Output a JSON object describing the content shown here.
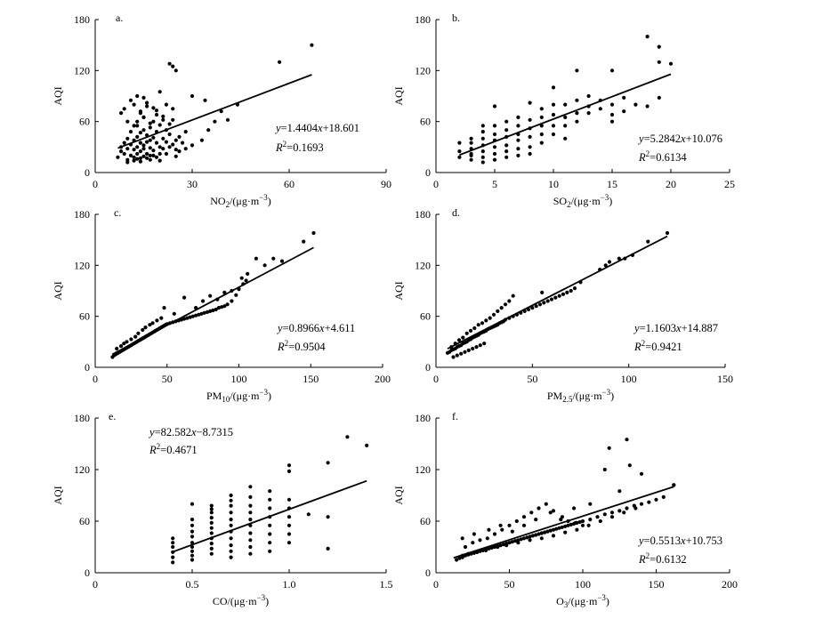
{
  "chart_data": [
    {
      "type": "scatter",
      "panel_label": "a.",
      "xlabel": "NO2/(μg·m−3)",
      "xlabel_parts": {
        "base": "NO",
        "sub": "2",
        "unit": "/(μg·m",
        "sup": "−3",
        "close": ")"
      },
      "ylabel": "AQI",
      "xlim": [
        0,
        90
      ],
      "ylim": [
        0,
        180
      ],
      "xticks": [
        0,
        30,
        60,
        90
      ],
      "yticks": [
        0,
        60,
        120,
        180
      ],
      "equation": "y=1.4404x+18.601",
      "eq_parts": {
        "slope": "=1.4404",
        "intercept": "+18.601"
      },
      "r2": "=0.1693",
      "fit": {
        "slope": 1.4404,
        "intercept": 18.601,
        "x_range": [
          7,
          67
        ]
      },
      "x": [
        7,
        8,
        8,
        9,
        9,
        10,
        10,
        10,
        11,
        11,
        11,
        12,
        12,
        12,
        12,
        13,
        13,
        13,
        13,
        14,
        14,
        14,
        14,
        14,
        15,
        15,
        15,
        15,
        16,
        16,
        16,
        16,
        17,
        17,
        17,
        17,
        18,
        18,
        18,
        19,
        19,
        19,
        20,
        20,
        20,
        21,
        21,
        21,
        22,
        22,
        23,
        23,
        24,
        24,
        25,
        25,
        26,
        27,
        28,
        8,
        9,
        10,
        11,
        12,
        13,
        13,
        14,
        15,
        15,
        16,
        17,
        18,
        19,
        20,
        21,
        22,
        23,
        24,
        10,
        12,
        13,
        14,
        15,
        16,
        17,
        18,
        19,
        20,
        22,
        25,
        26,
        28,
        30,
        33,
        35,
        37,
        41,
        23,
        24,
        25,
        30,
        34,
        39,
        44,
        57,
        67
      ],
      "y": [
        18,
        25,
        30,
        22,
        35,
        28,
        40,
        15,
        33,
        48,
        20,
        27,
        38,
        55,
        18,
        30,
        42,
        60,
        22,
        35,
        47,
        25,
        70,
        17,
        32,
        50,
        28,
        65,
        36,
        22,
        44,
        78,
        29,
        53,
        38,
        20,
        41,
        60,
        26,
        35,
        48,
        73,
        30,
        56,
        22,
        40,
        66,
        28,
        36,
        50,
        30,
        45,
        33,
        62,
        38,
        27,
        42,
        35,
        48,
        70,
        75,
        60,
        85,
        80,
        90,
        55,
        72,
        88,
        65,
        82,
        58,
        76,
        68,
        95,
        62,
        80,
        57,
        75,
        12,
        14,
        16,
        13,
        19,
        17,
        15,
        20,
        18,
        14,
        22,
        19,
        25,
        28,
        32,
        38,
        50,
        60,
        62,
        128,
        125,
        120,
        90,
        85,
        72,
        80,
        130,
        150
      ]
    },
    {
      "type": "scatter",
      "panel_label": "b.",
      "xlabel": "SO2/(μg·m−3)",
      "xlabel_parts": {
        "base": "SO",
        "sub": "2",
        "unit": "/(μg·m",
        "sup": "−3",
        "close": ")"
      },
      "ylabel": "AQI",
      "xlim": [
        0,
        25
      ],
      "ylim": [
        0,
        180
      ],
      "xticks": [
        0,
        5,
        10,
        15,
        20,
        25
      ],
      "yticks": [
        0,
        60,
        120,
        180
      ],
      "equation": "y=5.2842x+10.076",
      "eq_parts": {
        "slope": "=5.2842",
        "intercept": "+10.076"
      },
      "r2": "=0.6134",
      "fit": {
        "slope": 5.2842,
        "intercept": 10.076,
        "x_range": [
          2,
          20
        ]
      },
      "x": [
        2,
        2,
        2,
        3,
        3,
        3,
        3,
        3,
        3,
        4,
        4,
        4,
        4,
        4,
        4,
        4,
        5,
        5,
        5,
        5,
        5,
        5,
        5,
        6,
        6,
        6,
        6,
        6,
        6,
        7,
        7,
        7,
        7,
        7,
        7,
        8,
        8,
        8,
        8,
        8,
        8,
        9,
        9,
        9,
        9,
        9,
        10,
        10,
        10,
        10,
        10,
        11,
        11,
        11,
        11,
        12,
        12,
        12,
        12,
        13,
        13,
        13,
        14,
        14,
        15,
        15,
        15,
        15,
        16,
        16,
        17,
        18,
        18,
        19,
        19,
        19,
        20
      ],
      "y": [
        18,
        25,
        35,
        15,
        22,
        28,
        35,
        40,
        20,
        12,
        18,
        25,
        32,
        40,
        48,
        55,
        15,
        22,
        30,
        38,
        45,
        55,
        78,
        18,
        25,
        32,
        42,
        50,
        60,
        20,
        28,
        38,
        45,
        55,
        65,
        22,
        30,
        42,
        52,
        62,
        82,
        35,
        45,
        55,
        65,
        75,
        45,
        55,
        68,
        80,
        100,
        40,
        55,
        65,
        80,
        60,
        70,
        85,
        120,
        70,
        78,
        90,
        75,
        85,
        60,
        68,
        80,
        120,
        88,
        72,
        80,
        78,
        160,
        88,
        130,
        148,
        128
      ]
    },
    {
      "type": "scatter",
      "panel_label": "c.",
      "xlabel": "PM10/(μg·m−3)",
      "xlabel_parts": {
        "base": "PM",
        "sub": "10",
        "unit": "/(μg·m",
        "sup": "−3",
        "close": ")"
      },
      "ylabel": "AQI",
      "xlim": [
        0,
        200
      ],
      "ylim": [
        0,
        180
      ],
      "xticks": [
        0,
        50,
        100,
        150,
        200
      ],
      "yticks": [
        0,
        60,
        120,
        180
      ],
      "equation": "y=0.8966x+4.611",
      "eq_parts": {
        "slope": "=0.8966",
        "intercept": "+4.611"
      },
      "r2": "=0.9504",
      "fit": {
        "slope": 0.8966,
        "intercept": 4.611,
        "x_range": [
          12,
          152
        ]
      },
      "x": [
        12,
        13,
        14,
        15,
        16,
        17,
        18,
        19,
        20,
        21,
        22,
        23,
        24,
        25,
        26,
        27,
        28,
        29,
        30,
        31,
        32,
        33,
        34,
        35,
        36,
        37,
        38,
        39,
        40,
        41,
        42,
        43,
        44,
        45,
        46,
        47,
        48,
        49,
        50,
        52,
        54,
        56,
        58,
        60,
        62,
        64,
        66,
        68,
        70,
        72,
        74,
        76,
        78,
        80,
        82,
        84,
        86,
        88,
        90,
        92,
        95,
        98,
        100,
        103,
        105,
        15,
        18,
        20,
        22,
        25,
        28,
        30,
        33,
        35,
        38,
        40,
        43,
        46,
        48,
        55,
        62,
        70,
        75,
        80,
        85,
        90,
        95,
        102,
        106,
        112,
        118,
        124,
        130,
        145,
        152
      ],
      "y": [
        12,
        14,
        15,
        16,
        17,
        18,
        19,
        20,
        21,
        22,
        23,
        24,
        25,
        26,
        27,
        28,
        29,
        30,
        31,
        32,
        33,
        34,
        35,
        36,
        37,
        38,
        39,
        40,
        41,
        42,
        43,
        44,
        45,
        46,
        47,
        48,
        49,
        50,
        51,
        52,
        53,
        54,
        55,
        56,
        57,
        58,
        59,
        60,
        61,
        62,
        63,
        64,
        65,
        66,
        67,
        68,
        70,
        71,
        72,
        74,
        78,
        85,
        92,
        98,
        102,
        22,
        25,
        28,
        30,
        33,
        36,
        40,
        44,
        47,
        50,
        52,
        55,
        58,
        70,
        63,
        82,
        70,
        78,
        84,
        80,
        88,
        90,
        105,
        110,
        128,
        120,
        128,
        125,
        148,
        158
      ]
    },
    {
      "type": "scatter",
      "panel_label": "d.",
      "xlabel": "PM2.5/(μg·m−3)",
      "xlabel_parts": {
        "base": "PM",
        "sub": "2.5",
        "unit": "/(μg·m",
        "sup": "−3",
        "close": ")"
      },
      "ylabel": "AQI",
      "xlim": [
        0,
        150
      ],
      "ylim": [
        0,
        180
      ],
      "xticks": [
        0,
        50,
        100,
        150
      ],
      "yticks": [
        0,
        60,
        120,
        180
      ],
      "equation": "y=1.1603x+14.887",
      "eq_parts": {
        "slope": "=1.1603",
        "intercept": "+14.887"
      },
      "r2": "=0.9421",
      "fit": {
        "slope": 1.1603,
        "intercept": 14.887,
        "x_range": [
          6,
          120
        ]
      },
      "x": [
        6,
        7,
        8,
        9,
        10,
        11,
        12,
        13,
        14,
        15,
        16,
        17,
        18,
        19,
        20,
        21,
        22,
        23,
        24,
        25,
        26,
        27,
        28,
        29,
        30,
        31,
        32,
        33,
        34,
        35,
        36,
        38,
        40,
        42,
        44,
        46,
        48,
        50,
        52,
        54,
        56,
        58,
        60,
        62,
        64,
        66,
        68,
        70,
        72,
        75,
        8,
        10,
        12,
        14,
        16,
        18,
        20,
        22,
        24,
        26,
        28,
        30,
        32,
        34,
        36,
        38,
        40,
        9,
        11,
        13,
        15,
        17,
        19,
        21,
        23,
        25,
        55,
        85,
        88,
        90,
        95,
        98,
        102,
        110,
        120
      ],
      "y": [
        17,
        18,
        20,
        21,
        22,
        24,
        25,
        26,
        28,
        29,
        30,
        32,
        33,
        35,
        36,
        37,
        38,
        40,
        41,
        42,
        43,
        45,
        46,
        47,
        48,
        49,
        50,
        52,
        53,
        54,
        56,
        58,
        60,
        62,
        64,
        66,
        68,
        70,
        72,
        74,
        76,
        78,
        80,
        82,
        84,
        86,
        88,
        90,
        93,
        100,
        24,
        28,
        32,
        35,
        40,
        43,
        46,
        50,
        52,
        55,
        58,
        62,
        66,
        70,
        74,
        78,
        84,
        12,
        14,
        16,
        18,
        20,
        22,
        24,
        26,
        28,
        88,
        115,
        120,
        124,
        128,
        128,
        132,
        148,
        158
      ]
    },
    {
      "type": "scatter",
      "panel_label": "e.",
      "xlabel": "CO/(μg·m−3)",
      "xlabel_parts": {
        "base": "CO",
        "sub": "",
        "unit": "/(μg·m",
        "sup": "−3",
        "close": ")"
      },
      "ylabel": "AQI",
      "xlim": [
        0,
        1.5
      ],
      "ylim": [
        0,
        180
      ],
      "xticks": [
        0,
        0.5,
        1.0,
        1.5
      ],
      "yticks": [
        0,
        60,
        120,
        180
      ],
      "xtick_labels": [
        "0",
        "0.5",
        "1.0",
        "1.5"
      ],
      "equation": "y=82.582x−8.7315",
      "eq_parts": {
        "slope": "=82.582",
        "intercept": "−8.7315"
      },
      "r2": "=0.4671",
      "fit": {
        "slope": 82.582,
        "intercept": -8.7315,
        "x_range": [
          0.4,
          1.4
        ]
      },
      "x": [
        0.4,
        0.4,
        0.4,
        0.4,
        0.4,
        0.4,
        0.5,
        0.5,
        0.5,
        0.5,
        0.5,
        0.5,
        0.5,
        0.5,
        0.5,
        0.5,
        0.6,
        0.6,
        0.6,
        0.6,
        0.6,
        0.6,
        0.6,
        0.6,
        0.6,
        0.6,
        0.6,
        0.7,
        0.7,
        0.7,
        0.7,
        0.7,
        0.7,
        0.7,
        0.7,
        0.7,
        0.7,
        0.7,
        0.8,
        0.8,
        0.8,
        0.8,
        0.8,
        0.8,
        0.8,
        0.8,
        0.8,
        0.8,
        0.9,
        0.9,
        0.9,
        0.9,
        0.9,
        0.9,
        0.9,
        0.9,
        1.0,
        1.0,
        1.0,
        1.0,
        1.0,
        1.0,
        1.0,
        1.0,
        1.1,
        1.2,
        1.2,
        1.2,
        1.3,
        1.4
      ],
      "y": [
        12,
        18,
        24,
        30,
        35,
        40,
        15,
        20,
        25,
        30,
        35,
        42,
        48,
        55,
        62,
        80,
        22,
        28,
        34,
        40,
        46,
        52,
        58,
        64,
        70,
        74,
        78,
        18,
        25,
        32,
        40,
        48,
        55,
        62,
        70,
        78,
        84,
        90,
        22,
        30,
        38,
        46,
        55,
        62,
        70,
        78,
        88,
        100,
        25,
        35,
        45,
        55,
        65,
        75,
        85,
        95,
        35,
        45,
        55,
        65,
        75,
        85,
        118,
        125,
        68,
        28,
        65,
        128,
        158,
        148
      ]
    },
    {
      "type": "scatter",
      "panel_label": "f.",
      "xlabel": "O3/(μg·m−3)",
      "xlabel_parts": {
        "base": "O",
        "sub": "3",
        "unit": "/(μg·m",
        "sup": "−3",
        "close": ")"
      },
      "ylabel": "AQI",
      "xlim": [
        0,
        200
      ],
      "ylim": [
        0,
        180
      ],
      "xticks": [
        0,
        50,
        100,
        150,
        200
      ],
      "yticks": [
        0,
        60,
        120,
        180
      ],
      "equation": "y=0.5513x+10.753",
      "eq_parts": {
        "slope": "=0.5513",
        "intercept": "+10.753"
      },
      "r2": "=0.6132",
      "fit": {
        "slope": 0.5513,
        "intercept": 10.753,
        "x_range": [
          12,
          162
        ]
      },
      "x": [
        14,
        16,
        18,
        20,
        22,
        24,
        26,
        28,
        30,
        32,
        34,
        36,
        38,
        40,
        42,
        44,
        46,
        48,
        50,
        52,
        54,
        56,
        58,
        60,
        62,
        64,
        66,
        68,
        70,
        72,
        74,
        76,
        78,
        80,
        82,
        84,
        86,
        88,
        90,
        92,
        94,
        96,
        98,
        100,
        105,
        110,
        115,
        120,
        125,
        130,
        135,
        140,
        145,
        150,
        155,
        162,
        20,
        25,
        30,
        35,
        40,
        45,
        50,
        55,
        60,
        65,
        70,
        75,
        80,
        85,
        90,
        95,
        100,
        18,
        22,
        28,
        34,
        42,
        48,
        56,
        64,
        72,
        80,
        88,
        96,
        104,
        112,
        120,
        128,
        136,
        18,
        26,
        36,
        44,
        52,
        60,
        68,
        78,
        86,
        94,
        105,
        115,
        118,
        125,
        130,
        132,
        140,
        162
      ],
      "y": [
        15,
        17,
        18,
        20,
        21,
        22,
        23,
        24,
        25,
        26,
        27,
        28,
        29,
        30,
        31,
        32,
        33,
        34,
        35,
        36,
        37,
        38,
        39,
        40,
        41,
        42,
        43,
        44,
        45,
        46,
        47,
        48,
        49,
        50,
        51,
        52,
        53,
        54,
        55,
        56,
        57,
        58,
        59,
        60,
        62,
        65,
        68,
        70,
        72,
        75,
        78,
        80,
        82,
        85,
        88,
        102,
        30,
        35,
        38,
        40,
        45,
        50,
        55,
        60,
        65,
        70,
        75,
        80,
        72,
        62,
        60,
        58,
        55,
        20,
        22,
        24,
        26,
        30,
        32,
        35,
        38,
        40,
        43,
        47,
        50,
        55,
        60,
        65,
        70,
        75,
        40,
        45,
        50,
        55,
        48,
        55,
        62,
        70,
        65,
        75,
        80,
        120,
        145,
        95,
        155,
        125,
        115,
        102
      ]
    }
  ]
}
